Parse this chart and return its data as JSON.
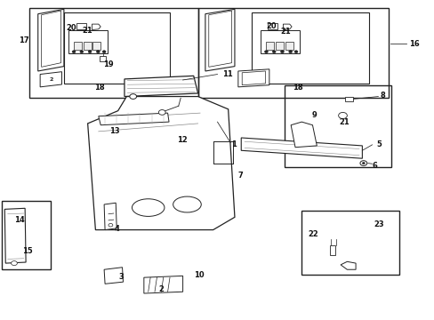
{
  "bg_color": "#ffffff",
  "line_color": "#222222",
  "fig_width": 4.89,
  "fig_height": 3.6
}
